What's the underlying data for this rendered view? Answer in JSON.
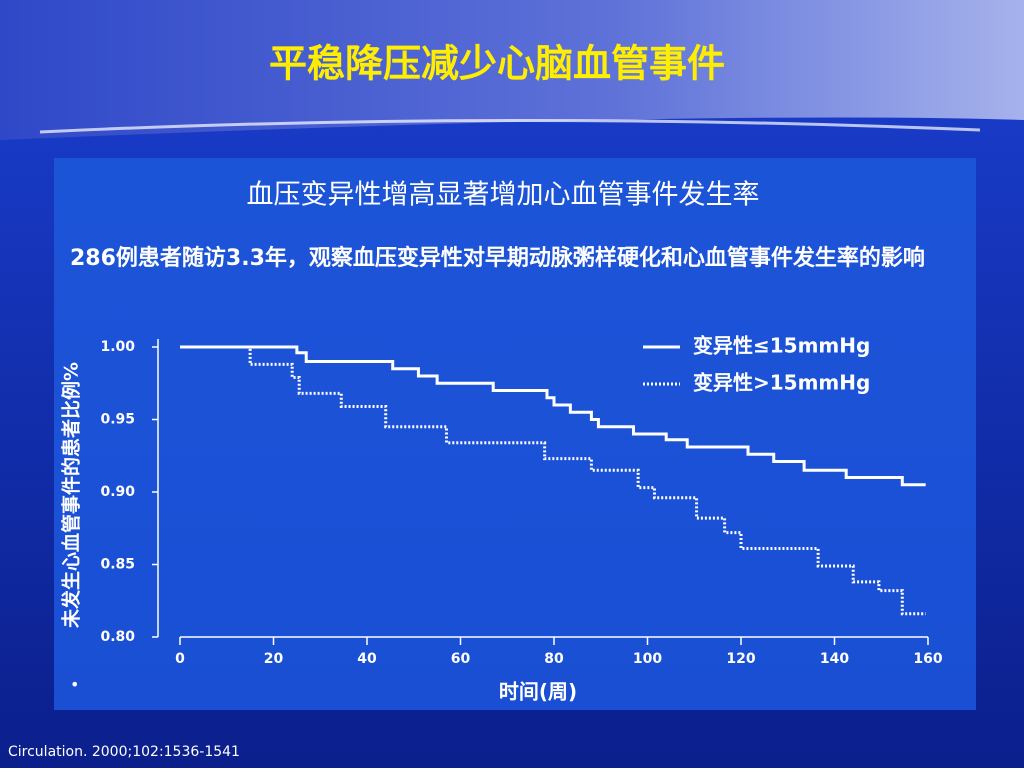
{
  "slide": {
    "title": "平稳降压减少心脑血管事件",
    "citation": "Circulation. 2000;102:1536-1541"
  },
  "chart_data": {
    "type": "step",
    "title": "血压变异性增高显著增加心血管事件发生率",
    "subtitle": "286例患者随访3.3年，观察血压变异性对早期动脉粥样硬化和心血管事件发生率的影响",
    "x_label": "时间(周)",
    "y_label": "未发生心血管事件的患者比例%",
    "xlim": [
      0,
      160
    ],
    "xticks": [
      0,
      20,
      40,
      60,
      80,
      100,
      120,
      140,
      160
    ],
    "ylim": [
      0.8,
      1.0
    ],
    "yticks": [
      {
        "value": 0.8,
        "label": "0.80"
      },
      {
        "value": 0.85,
        "label": "0.85"
      },
      {
        "value": 0.9,
        "label": "0.90"
      },
      {
        "value": 0.95,
        "label": "0.95"
      },
      {
        "value": 1.0,
        "label": "1.00"
      }
    ],
    "legend": "top-right",
    "series": [
      {
        "name": "变异性≤15mmHg",
        "color": "#ffffff",
        "style": "solid",
        "x": [
          0,
          25,
          27,
          45.5,
          51,
          55,
          67,
          78.5,
          80,
          83.5,
          88,
          89.5,
          97,
          104,
          108.5,
          121.5,
          127,
          133.5,
          142.5,
          154.5,
          159.5
        ],
        "values": [
          1.0,
          0.996,
          0.99,
          0.985,
          0.98,
          0.975,
          0.97,
          0.965,
          0.96,
          0.955,
          0.95,
          0.945,
          0.94,
          0.936,
          0.931,
          0.926,
          0.921,
          0.915,
          0.91,
          0.905,
          0.905
        ]
      },
      {
        "name": "变异性>15mmHg",
        "color": "#ffffff",
        "style": "dotted",
        "x": [
          0,
          15,
          24,
          25.5,
          34.5,
          44,
          57,
          78,
          88,
          98,
          101.5,
          110.5,
          116.5,
          120,
          136.5,
          144,
          149.5,
          154.5,
          159.5
        ],
        "values": [
          1.0,
          0.988,
          0.979,
          0.968,
          0.959,
          0.945,
          0.934,
          0.923,
          0.915,
          0.903,
          0.896,
          0.882,
          0.872,
          0.861,
          0.849,
          0.838,
          0.832,
          0.816,
          0.816
        ]
      }
    ]
  }
}
